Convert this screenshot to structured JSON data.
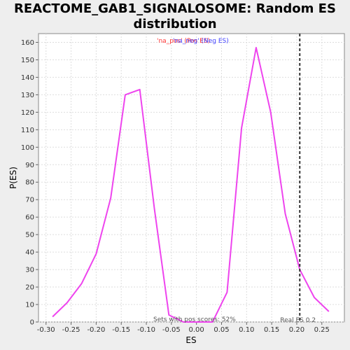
{
  "chart_data": {
    "type": "line",
    "title_line1": "REACTOME_GAB1_SIGNALOSOME: Random ES",
    "title_line2": "distribution",
    "xlabel": "ES",
    "ylabel": "P(ES)",
    "xlim": [
      -0.315,
      0.295
    ],
    "ylim": [
      0,
      165
    ],
    "xticks": [
      -0.3,
      -0.25,
      -0.2,
      -0.15,
      -0.1,
      -0.05,
      0.0,
      0.05,
      0.1,
      0.15,
      0.2,
      0.25
    ],
    "xtick_labels": [
      "-0.30",
      "-0.25",
      "-0.20",
      "-0.15",
      "-0.10",
      "-0.05",
      "0.00",
      "0.05",
      "0.10",
      "0.15",
      "0.20",
      "0.25"
    ],
    "yticks": [
      0,
      10,
      20,
      30,
      40,
      50,
      60,
      70,
      80,
      90,
      100,
      110,
      120,
      130,
      140,
      150,
      160
    ],
    "grid": true,
    "line_color": "#ee44ee",
    "series": [
      {
        "x": [
          -0.287,
          -0.258,
          -0.229,
          -0.2,
          -0.171,
          -0.142,
          -0.113,
          -0.084,
          -0.055,
          -0.026,
          0.003,
          0.032,
          0.061,
          0.09,
          0.119,
          0.148,
          0.177,
          0.206,
          0.235,
          0.264
        ],
        "y": [
          3,
          11,
          22,
          39,
          71,
          130,
          133,
          65,
          4,
          0,
          0,
          0,
          17,
          111,
          157,
          120,
          62,
          30,
          14,
          6
        ]
      }
    ],
    "vline": {
      "x": 0.206,
      "label": "Real ES 0.2",
      "color": "#333333"
    },
    "annotation_bottom": "Sets with pos scores: 52%",
    "legend": {
      "placement": "top-center",
      "items": [
        {
          "label": "'na_pos' (Pos ES)",
          "color": "#ff3333"
        },
        {
          "label": "'na_neg' (Neg ES)",
          "color": "#4444ff"
        }
      ]
    }
  }
}
